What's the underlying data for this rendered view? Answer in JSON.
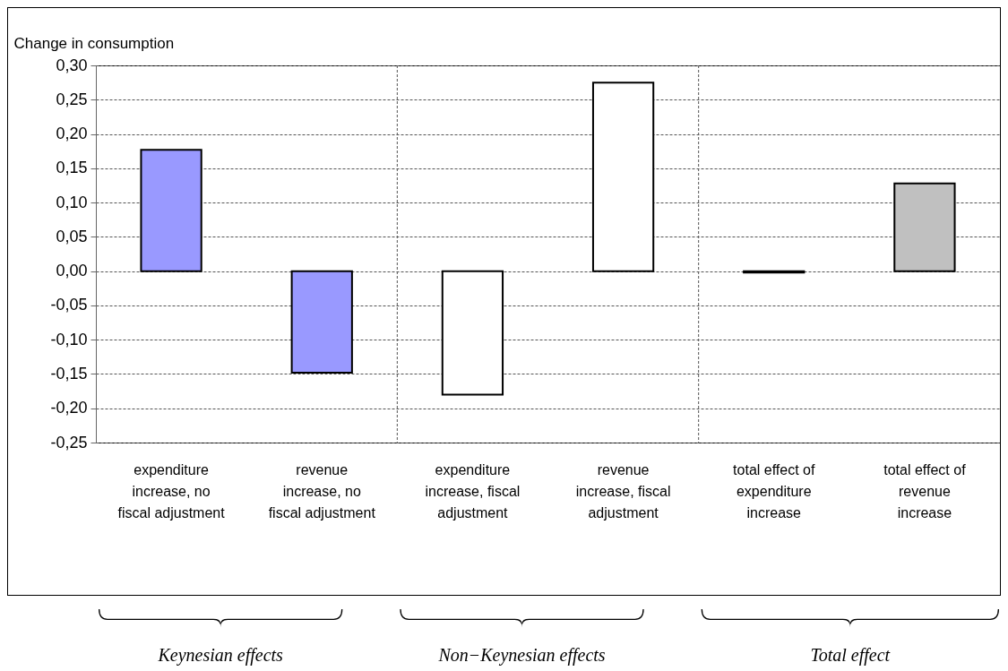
{
  "chart_data": {
    "type": "bar",
    "ylabel": "Change in consumption",
    "categories": [
      "expenditure increase, no fiscal adjustment",
      "revenue increase, no fiscal adjustment",
      "expenditure increase, fiscal adjustment",
      "revenue increase, fiscal adjustment",
      "total effect of expenditure increase",
      "total effect of revenue increase"
    ],
    "values": [
      0.177,
      -0.148,
      -0.18,
      0.275,
      -0.002,
      0.128
    ],
    "colors": [
      "#9999ff",
      "#9999ff",
      "#ffffff",
      "#ffffff",
      "#c0c0c0",
      "#c0c0c0"
    ],
    "ylim": [
      -0.25,
      0.3
    ],
    "yticks": [
      {
        "value": -0.25,
        "label": "-0,25"
      },
      {
        "value": -0.2,
        "label": "-0,20"
      },
      {
        "value": -0.15,
        "label": "-0,15"
      },
      {
        "value": -0.1,
        "label": "-0,10"
      },
      {
        "value": -0.05,
        "label": "-0,05"
      },
      {
        "value": 0,
        "label": "0,00"
      },
      {
        "value": 0.05,
        "label": "0,05"
      },
      {
        "value": 0.1,
        "label": "0,10"
      },
      {
        "value": 0.15,
        "label": "0,15"
      },
      {
        "value": 0.2,
        "label": "0,20"
      },
      {
        "value": 0.25,
        "label": "0,25"
      },
      {
        "value": 0.3,
        "label": "0,30"
      }
    ],
    "grid": true,
    "annotations": [
      "Keynesian effects",
      "Non−Keynesian effects",
      "Total effect"
    ]
  }
}
